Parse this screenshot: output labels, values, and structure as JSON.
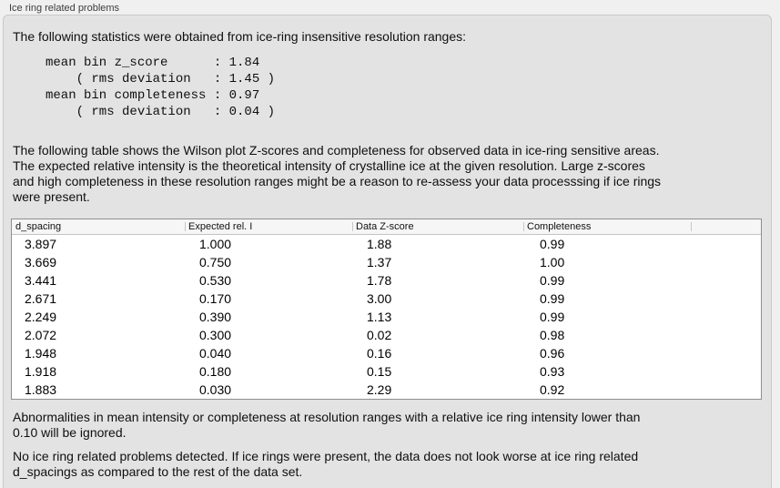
{
  "groupbox": {
    "title": "Ice ring related problems"
  },
  "intro_text": "The following statistics were obtained from ice-ring insensitive resolution ranges:",
  "stats_block": "mean bin z_score      : 1.84\n    ( rms deviation   : 1.45 )\nmean bin completeness : 0.97\n    ( rms deviation   : 0.04 )",
  "table_intro": "The following table shows the Wilson plot Z-scores and completeness for observed data in ice-ring sensitive areas.\nThe expected relative intensity is the theoretical intensity of crystalline ice at the given resolution. Large z-scores\nand high completeness in these resolution ranges might be a reason to re-assess your data processsing if ice rings\nwere present.",
  "table": {
    "columns": [
      "d_spacing",
      "Expected rel. I",
      "Data Z-score",
      "Completeness"
    ],
    "rows": [
      [
        "3.897",
        "1.000",
        "1.88",
        "0.99"
      ],
      [
        "3.669",
        "0.750",
        "1.37",
        "1.00"
      ],
      [
        "3.441",
        "0.530",
        "1.78",
        "0.99"
      ],
      [
        "2.671",
        "0.170",
        "3.00",
        "0.99"
      ],
      [
        "2.249",
        "0.390",
        "1.13",
        "0.99"
      ],
      [
        "2.072",
        "0.300",
        "0.02",
        "0.98"
      ],
      [
        "1.948",
        "0.040",
        "0.16",
        "0.96"
      ],
      [
        "1.918",
        "0.180",
        "0.15",
        "0.93"
      ],
      [
        "1.883",
        "0.030",
        "2.29",
        "0.92"
      ]
    ]
  },
  "note_ignore": "Abnormalities in mean intensity or completeness at resolution ranges with a relative ice ring intensity lower than\n0.10 will be ignored.",
  "conclusion": "No ice ring related problems detected. If ice rings were present, the data does not look worse at ice ring related\nd_spacings as compared to the rest of the data set.",
  "colors": {
    "window_bg": "#f0f0f0",
    "panel_bg": "#e3e3e3",
    "panel_border": "#c9c9c9",
    "table_bg": "#ffffff",
    "table_border": "#8f8f8f",
    "table_header_bg": "#f6f6f6",
    "text": "#0f0f0f"
  }
}
